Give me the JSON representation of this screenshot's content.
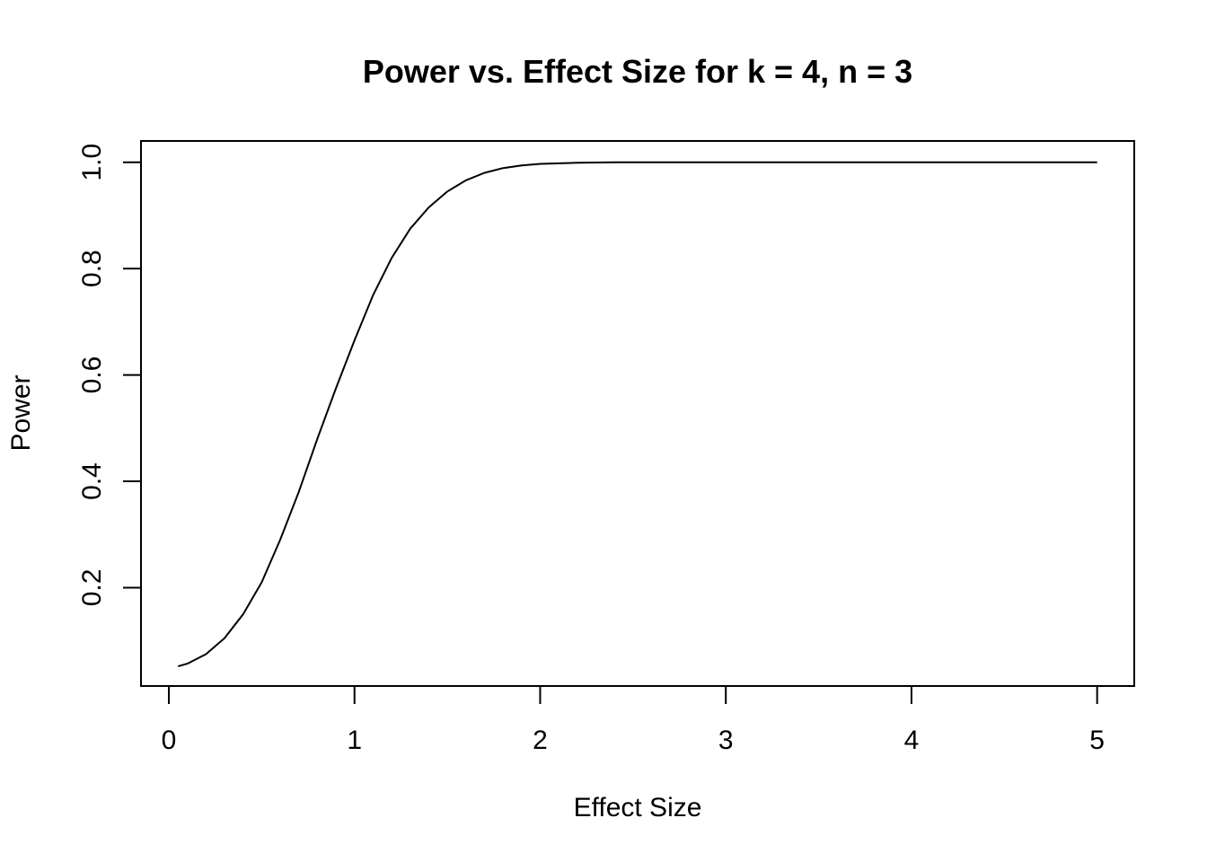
{
  "chart_data": {
    "type": "line",
    "title": "Power vs. Effect Size for k = 4, n = 3",
    "xlabel": "Effect Size",
    "ylabel": "Power",
    "xlim": [
      -0.15,
      5.2
    ],
    "ylim": [
      0.015,
      1.04
    ],
    "xticks": [
      0,
      1,
      2,
      3,
      4,
      5
    ],
    "xtick_labels": [
      "0",
      "1",
      "2",
      "3",
      "4",
      "5"
    ],
    "yticks": [
      0.2,
      0.4,
      0.6,
      0.8,
      1.0
    ],
    "ytick_labels": [
      "0.2",
      "0.4",
      "0.6",
      "0.8",
      "1.0"
    ],
    "grid": false,
    "line_color": "#000000",
    "series": [
      {
        "x": [
          0.05,
          0.1,
          0.2,
          0.3,
          0.4,
          0.5,
          0.6,
          0.7,
          0.8,
          0.9,
          1.0,
          1.1,
          1.2,
          1.3,
          1.4,
          1.5,
          1.6,
          1.7,
          1.8,
          1.9,
          2.0,
          2.2,
          2.4,
          2.6,
          3.0,
          3.5,
          4.0,
          4.5,
          5.0
        ],
        "y": [
          0.052,
          0.057,
          0.075,
          0.105,
          0.15,
          0.21,
          0.29,
          0.38,
          0.48,
          0.575,
          0.665,
          0.75,
          0.82,
          0.875,
          0.915,
          0.945,
          0.966,
          0.98,
          0.989,
          0.994,
          0.997,
          0.999,
          1.0,
          1.0,
          1.0,
          1.0,
          1.0,
          1.0,
          1.0
        ]
      }
    ]
  }
}
